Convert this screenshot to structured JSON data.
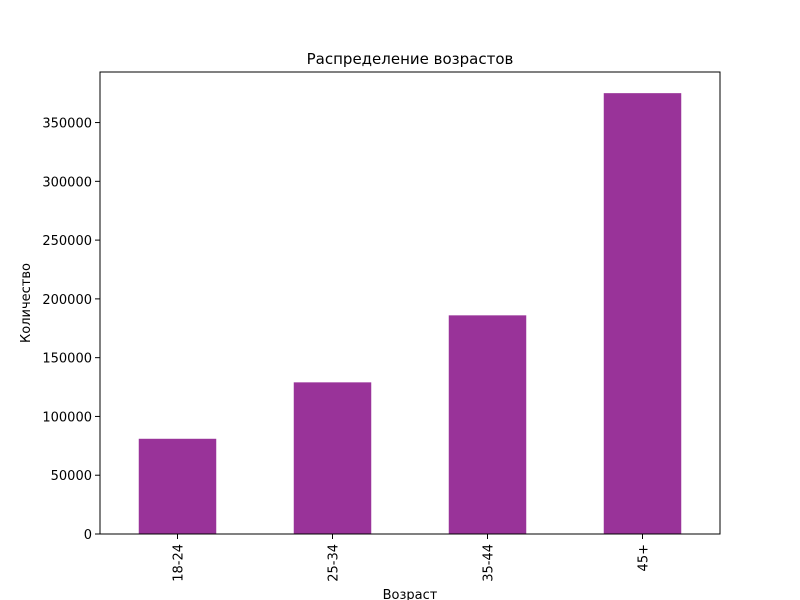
{
  "chart_data": {
    "type": "bar",
    "title": "Распределение возрастов",
    "xlabel": "Возраст",
    "ylabel": "Количество",
    "categories": [
      "18-24",
      "25-34",
      "35-44",
      "45+"
    ],
    "values": [
      81000,
      129000,
      186000,
      375000
    ],
    "ylim": [
      0,
      393000
    ],
    "yticks": [
      0,
      50000,
      100000,
      150000,
      200000,
      250000,
      300000,
      350000
    ],
    "bar_color": "#993399",
    "grid": false,
    "legend": "none"
  }
}
